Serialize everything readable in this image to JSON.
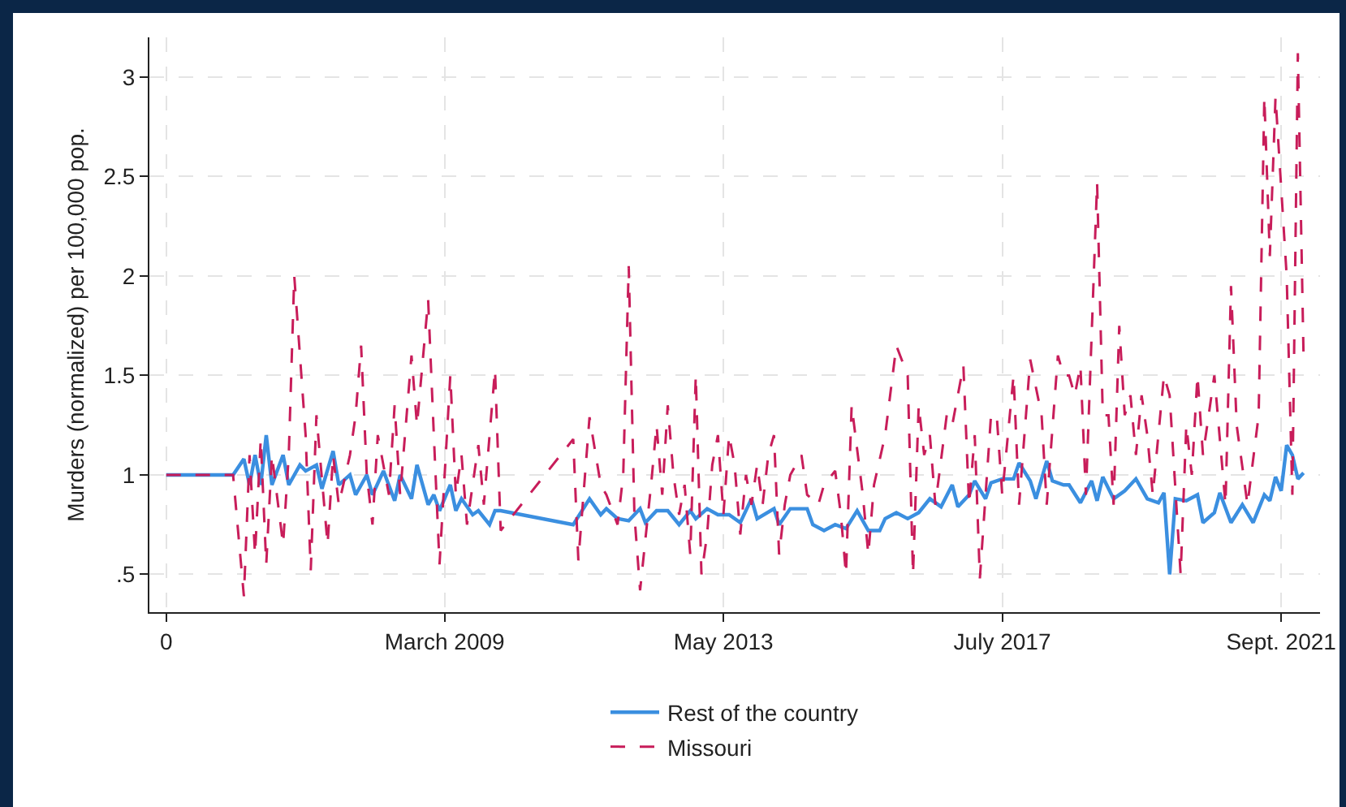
{
  "chart_data": {
    "type": "line",
    "ylabel": "Murders (normalized) per 100,000 pop.",
    "xlim": [
      "2004-10",
      "2022-04"
    ],
    "xticks": [
      {
        "value": "2005-01",
        "label": "0"
      },
      {
        "value": "2009-03",
        "label": "March 2009"
      },
      {
        "value": "2013-05",
        "label": "May 2013"
      },
      {
        "value": "2017-07",
        "label": "July 2017"
      },
      {
        "value": "2021-09",
        "label": "Sept. 2021"
      }
    ],
    "ylim": [
      0.31,
      3.2
    ],
    "yticks": [
      {
        "value": 0.5,
        "label": ".5"
      },
      1,
      1.5,
      2,
      2.5,
      3
    ],
    "grid": true,
    "legend": "bottom",
    "marker": "none",
    "series": [
      {
        "name": "Rest of the country",
        "color": "#3b8fe0",
        "line_style": "solid",
        "x": [
          "2005-01",
          "2006-01",
          "2006-03",
          "2006-04",
          "2006-05",
          "2006-06",
          "2006-07",
          "2006-08",
          "2006-10",
          "2006-11",
          "2007-01",
          "2007-02",
          "2007-04",
          "2007-05",
          "2007-07",
          "2007-08",
          "2007-10",
          "2007-11",
          "2008-01",
          "2008-02",
          "2008-04",
          "2008-06",
          "2008-07",
          "2008-09",
          "2008-10",
          "2008-12",
          "2009-01",
          "2009-02",
          "2009-04",
          "2009-05",
          "2009-06",
          "2009-08",
          "2009-09",
          "2009-11",
          "2009-12",
          "2010-01",
          "2011-02",
          "2011-05",
          "2011-07",
          "2011-08",
          "2011-10",
          "2011-12",
          "2012-02",
          "2012-03",
          "2012-05",
          "2012-07",
          "2012-09",
          "2012-11",
          "2012-12",
          "2013-02",
          "2013-04",
          "2013-06",
          "2013-08",
          "2013-10",
          "2013-11",
          "2014-02",
          "2014-03",
          "2014-05",
          "2014-08",
          "2014-09",
          "2014-11",
          "2015-01",
          "2015-03",
          "2015-05",
          "2015-07",
          "2015-09",
          "2015-10",
          "2015-12",
          "2016-02",
          "2016-04",
          "2016-06",
          "2016-08",
          "2016-10",
          "2016-11",
          "2017-01",
          "2017-02",
          "2017-04",
          "2017-05",
          "2017-07",
          "2017-09",
          "2017-10",
          "2017-12",
          "2018-01",
          "2018-03",
          "2018-04",
          "2018-06",
          "2018-07",
          "2018-09",
          "2018-11",
          "2018-12",
          "2019-01",
          "2019-03",
          "2019-05",
          "2019-07",
          "2019-09",
          "2019-11",
          "2019-12",
          "2020-01",
          "2020-02",
          "2020-04",
          "2020-06",
          "2020-07",
          "2020-09",
          "2020-10",
          "2020-12",
          "2021-02",
          "2021-04",
          "2021-06",
          "2021-07",
          "2021-08",
          "2021-09",
          "2021-10",
          "2021-11",
          "2021-12",
          "2022-01"
        ],
        "values": [
          1,
          1,
          1.08,
          0.95,
          1.1,
          0.95,
          1.2,
          0.95,
          1.1,
          0.95,
          1.05,
          1.02,
          1.05,
          0.93,
          1.12,
          0.95,
          1,
          0.9,
          1,
          0.9,
          1.02,
          0.87,
          1,
          0.88,
          1.05,
          0.85,
          0.9,
          0.82,
          0.95,
          0.82,
          0.88,
          0.8,
          0.82,
          0.75,
          0.82,
          0.82,
          0.75,
          0.88,
          0.8,
          0.83,
          0.78,
          0.77,
          0.83,
          0.76,
          0.82,
          0.82,
          0.75,
          0.82,
          0.78,
          0.83,
          0.8,
          0.8,
          0.76,
          0.88,
          0.78,
          0.83,
          0.75,
          0.83,
          0.83,
          0.75,
          0.72,
          0.75,
          0.73,
          0.82,
          0.72,
          0.72,
          0.78,
          0.81,
          0.78,
          0.81,
          0.88,
          0.84,
          0.95,
          0.84,
          0.9,
          0.97,
          0.88,
          0.96,
          0.98,
          0.98,
          1.06,
          0.97,
          0.88,
          1.07,
          0.97,
          0.95,
          0.95,
          0.86,
          0.97,
          0.87,
          0.99,
          0.88,
          0.92,
          0.98,
          0.88,
          0.86,
          0.91,
          0.5,
          0.88,
          0.87,
          0.9,
          0.76,
          0.81,
          0.91,
          0.76,
          0.85,
          0.76,
          0.9,
          0.87,
          0.99,
          0.92,
          1.15,
          1.1,
          0.98,
          1.01
        ]
      },
      {
        "name": "Missouri",
        "color": "#c81d5a",
        "line_style": "dashed",
        "x": [
          "2005-01",
          "2006-01",
          "2006-03",
          "2006-04",
          "2006-05",
          "2006-06",
          "2006-07",
          "2006-08",
          "2006-10",
          "2006-11",
          "2006-12",
          "2007-02",
          "2007-03",
          "2007-04",
          "2007-06",
          "2007-07",
          "2007-08",
          "2007-10",
          "2007-11",
          "2007-12",
          "2008-01",
          "2008-02",
          "2008-03",
          "2008-05",
          "2008-06",
          "2008-07",
          "2008-09",
          "2008-10",
          "2008-12",
          "2009-01",
          "2009-02",
          "2009-03",
          "2009-04",
          "2009-05",
          "2009-06",
          "2009-07",
          "2009-09",
          "2009-10",
          "2009-12",
          "2010-01",
          "2011-02",
          "2011-03",
          "2011-05",
          "2011-07",
          "2011-08",
          "2011-10",
          "2011-11",
          "2011-12",
          "2012-01",
          "2012-02",
          "2012-04",
          "2012-05",
          "2012-06",
          "2012-07",
          "2012-08",
          "2012-09",
          "2012-10",
          "2012-11",
          "2012-12",
          "2013-01",
          "2013-02",
          "2013-03",
          "2013-04",
          "2013-05",
          "2013-06",
          "2013-07",
          "2013-08",
          "2013-09",
          "2013-10",
          "2013-11",
          "2013-12",
          "2014-01",
          "2014-02",
          "2014-03",
          "2014-04",
          "2014-05",
          "2014-07",
          "2014-08",
          "2014-10",
          "2014-11",
          "2015-01",
          "2015-02",
          "2015-03",
          "2015-04",
          "2015-06",
          "2015-07",
          "2015-08",
          "2015-10",
          "2015-12",
          "2016-02",
          "2016-03",
          "2016-04",
          "2016-05",
          "2016-06",
          "2016-07",
          "2016-09",
          "2016-10",
          "2016-12",
          "2017-01",
          "2017-02",
          "2017-03",
          "2017-05",
          "2017-06",
          "2017-07",
          "2017-09",
          "2017-10",
          "2017-12",
          "2018-02",
          "2018-03",
          "2018-05",
          "2018-06",
          "2018-07",
          "2018-08",
          "2018-09",
          "2018-10",
          "2018-12",
          "2019-01",
          "2019-02",
          "2019-03",
          "2019-04",
          "2019-05",
          "2019-06",
          "2019-07",
          "2019-08",
          "2019-09",
          "2019-10",
          "2019-12",
          "2020-01",
          "2020-03",
          "2020-04",
          "2020-05",
          "2020-06",
          "2020-07",
          "2020-09",
          "2020-11",
          "2020-12",
          "2021-01",
          "2021-03",
          "2021-05",
          "2021-06",
          "2021-07",
          "2021-08",
          "2021-10",
          "2021-11",
          "2021-12",
          "2022-01"
        ],
        "values": [
          1,
          1,
          0.39,
          1.1,
          0.6,
          1.18,
          0.55,
          1.1,
          0.65,
          1.1,
          2,
          1.2,
          0.52,
          1.3,
          0.65,
          1.1,
          0.85,
          1.1,
          1.3,
          1.65,
          1,
          0.75,
          1.2,
          0.9,
          1.35,
          0.9,
          1.6,
          1.25,
          1.88,
          1.2,
          0.55,
          1,
          1.5,
          0.9,
          1.1,
          0.75,
          1.15,
          0.85,
          1.53,
          0.72,
          1.18,
          0.57,
          1.29,
          0.95,
          0.9,
          0.75,
          1,
          2.05,
          0.8,
          0.42,
          0.95,
          1.25,
          0.9,
          1.35,
          1,
          0.8,
          0.95,
          0.6,
          1.5,
          0.5,
          0.7,
          1.05,
          1.2,
          0.8,
          1.2,
          1.05,
          0.7,
          1,
          0.85,
          1.05,
          0.85,
          1.1,
          1.2,
          0.6,
          0.85,
          1,
          1.1,
          0.9,
          0.85,
          0.95,
          1.02,
          0.8,
          0.5,
          1.35,
          0.9,
          0.6,
          0.95,
          1.2,
          1.65,
          1.5,
          0.5,
          1.35,
          1.1,
          1.2,
          0.85,
          1.3,
          1.25,
          1.55,
          0.85,
          1.2,
          0.48,
          1.3,
          1.3,
          0.9,
          1.5,
          0.85,
          1.58,
          1.3,
          0.85,
          1.6,
          1.5,
          1.5,
          1.4,
          1.55,
          0.9,
          2.47,
          1.3,
          1.3,
          0.85,
          1.75,
          1.3,
          1.4,
          1.1,
          1.4,
          1.2,
          0.9,
          1.5,
          1.4,
          0.5,
          1.25,
          1,
          1.5,
          1.1,
          1.5,
          0.85,
          1.95,
          1.25,
          0.85,
          1.3,
          2.9,
          2.1,
          2.9,
          2,
          0.9,
          3.12,
          1.6
        ]
      }
    ]
  }
}
